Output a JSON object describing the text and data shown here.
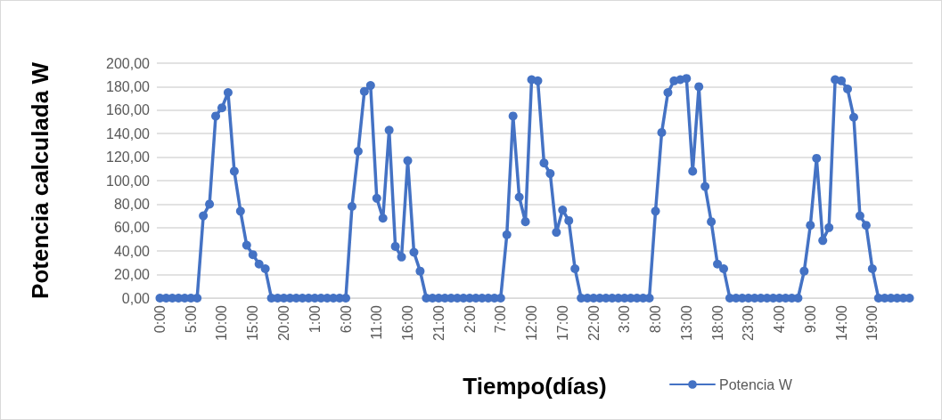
{
  "chart_data": {
    "type": "line",
    "xlabel": "Tiempo(días)",
    "ylabel": "Potencia calculada W",
    "categories": [
      "0:00",
      null,
      null,
      null,
      null,
      "5:00",
      null,
      null,
      null,
      null,
      "10:00",
      null,
      null,
      null,
      null,
      "15:00",
      null,
      null,
      null,
      null,
      "20:00",
      null,
      null,
      null,
      null,
      "1:00",
      null,
      null,
      null,
      null,
      "6:00",
      null,
      null,
      null,
      null,
      "11:00",
      null,
      null,
      null,
      null,
      "16:00",
      null,
      null,
      null,
      null,
      "21:00",
      null,
      null,
      null,
      null,
      "2:00",
      null,
      null,
      null,
      null,
      "7:00",
      null,
      null,
      null,
      null,
      "12:00",
      null,
      null,
      null,
      null,
      "17:00",
      null,
      null,
      null,
      null,
      "22:00",
      null,
      null,
      null,
      null,
      "3:00",
      null,
      null,
      null,
      null,
      "8:00",
      null,
      null,
      null,
      null,
      "13:00",
      null,
      null,
      null,
      null,
      "18:00",
      null,
      null,
      null,
      null,
      "23:00",
      null,
      null,
      null,
      null,
      "4:00",
      null,
      null,
      null,
      null,
      "9:00",
      null,
      null,
      null,
      null,
      "14:00",
      null,
      null,
      null,
      null,
      "19:00",
      null,
      null,
      null,
      null,
      null,
      null
    ],
    "series": [
      {
        "name": "Potencia W",
        "color": "#4472c4",
        "values": [
          0,
          0,
          0,
          0,
          0,
          0,
          0,
          70,
          80,
          155,
          162,
          175,
          108,
          74,
          45,
          37,
          29,
          25,
          0,
          0,
          0,
          0,
          0,
          0,
          0,
          0,
          0,
          0,
          0,
          0,
          0,
          78,
          125,
          176,
          181,
          85,
          68,
          143,
          44,
          35,
          117,
          39,
          23,
          0,
          0,
          0,
          0,
          0,
          0,
          0,
          0,
          0,
          0,
          0,
          0,
          0,
          54,
          155,
          86,
          65,
          186,
          185,
          115,
          106,
          56,
          75,
          66,
          25,
          0,
          0,
          0,
          0,
          0,
          0,
          0,
          0,
          0,
          0,
          0,
          0,
          74,
          141,
          175,
          185,
          186,
          187,
          108,
          180,
          95,
          65,
          29,
          25,
          0,
          0,
          0,
          0,
          0,
          0,
          0,
          0,
          0,
          0,
          0,
          0,
          23,
          62,
          119,
          49,
          60,
          186,
          185,
          178,
          154,
          70,
          62,
          25,
          0,
          0,
          0,
          0,
          0,
          0
        ]
      }
    ],
    "ylim": [
      0,
      200
    ],
    "yticks": [
      {
        "value": 0,
        "label": "0,00"
      },
      {
        "value": 20,
        "label": "20,00"
      },
      {
        "value": 40,
        "label": "40,00"
      },
      {
        "value": 60,
        "label": "60,00"
      },
      {
        "value": 80,
        "label": "80,00"
      },
      {
        "value": 100,
        "label": "100,00"
      },
      {
        "value": 120,
        "label": "120,00"
      },
      {
        "value": 140,
        "label": "140,00"
      },
      {
        "value": 160,
        "label": "160,00"
      },
      {
        "value": 180,
        "label": "180,00"
      },
      {
        "value": 200,
        "label": "200,00"
      }
    ],
    "grid": "y",
    "legend": "bottom right",
    "marker": "circle",
    "line_style": "solid"
  }
}
